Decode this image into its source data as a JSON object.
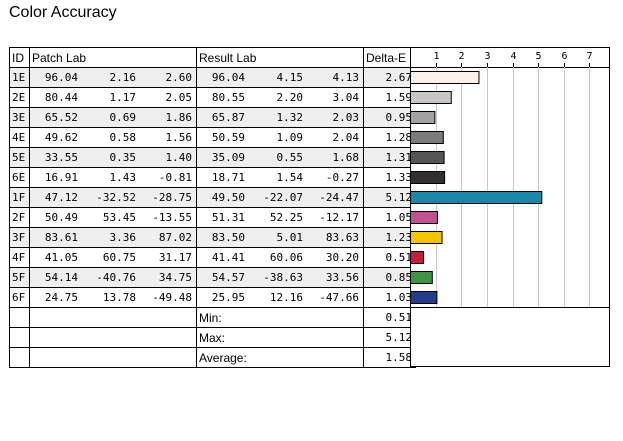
{
  "title": "Color Accuracy",
  "headers": {
    "id": "ID",
    "patch": "Patch Lab",
    "result": "Result Lab",
    "delta": "Delta-E"
  },
  "rows": [
    {
      "id": "1E",
      "patch": [
        "96.04",
        "2.16",
        "2.60"
      ],
      "result": [
        "96.04",
        "4.15",
        "4.13"
      ],
      "delta": "2.67",
      "color": "#fbf0ea"
    },
    {
      "id": "2E",
      "patch": [
        "80.44",
        "1.17",
        "2.05"
      ],
      "result": [
        "80.55",
        "2.20",
        "3.04"
      ],
      "delta": "1.59",
      "color": "#c8c6c5"
    },
    {
      "id": "3E",
      "patch": [
        "65.52",
        "0.69",
        "1.86"
      ],
      "result": [
        "65.87",
        "1.32",
        "2.03"
      ],
      "delta": "0.95",
      "color": "#a2a2a1"
    },
    {
      "id": "4E",
      "patch": [
        "49.62",
        "0.58",
        "1.56"
      ],
      "result": [
        "50.59",
        "1.09",
        "2.04"
      ],
      "delta": "1.28",
      "color": "#7b7b7b"
    },
    {
      "id": "5E",
      "patch": [
        "33.55",
        "0.35",
        "1.40"
      ],
      "result": [
        "35.09",
        "0.55",
        "1.68"
      ],
      "delta": "1.31",
      "color": "#555555"
    },
    {
      "id": "6E",
      "patch": [
        "16.91",
        "1.43",
        "-0.81"
      ],
      "result": [
        "18.71",
        "1.54",
        "-0.27"
      ],
      "delta": "1.33",
      "color": "#303030"
    },
    {
      "id": "1F",
      "patch": [
        "47.12",
        "-32.52",
        "-28.75"
      ],
      "result": [
        "49.50",
        "-22.07",
        "-24.47"
      ],
      "delta": "5.12",
      "color": "#1a88a8"
    },
    {
      "id": "2F",
      "patch": [
        "50.49",
        "53.45",
        "-13.55"
      ],
      "result": [
        "51.31",
        "52.25",
        "-12.17"
      ],
      "delta": "1.05",
      "color": "#c05294"
    },
    {
      "id": "3F",
      "patch": [
        "83.61",
        "3.36",
        "87.02"
      ],
      "result": [
        "83.50",
        "5.01",
        "83.63"
      ],
      "delta": "1.23",
      "color": "#f2c500"
    },
    {
      "id": "4F",
      "patch": [
        "41.05",
        "60.75",
        "31.17"
      ],
      "result": [
        "41.41",
        "60.06",
        "30.20"
      ],
      "delta": "0.51",
      "color": "#c22034"
    },
    {
      "id": "5F",
      "patch": [
        "54.14",
        "-40.76",
        "34.75"
      ],
      "result": [
        "54.57",
        "-38.63",
        "33.56"
      ],
      "delta": "0.85",
      "color": "#3e9447"
    },
    {
      "id": "6F",
      "patch": [
        "24.75",
        "13.78",
        "-49.48"
      ],
      "result": [
        "25.95",
        "12.16",
        "-47.66"
      ],
      "delta": "1.03",
      "color": "#233c8c"
    }
  ],
  "summary": [
    {
      "label": "Min:",
      "value": "0.51"
    },
    {
      "label": "Max:",
      "value": "5.12"
    },
    {
      "label": "Average:",
      "value": "1.58"
    }
  ],
  "chart_data": {
    "type": "bar",
    "orientation": "horizontal",
    "title": "Color Accuracy",
    "categories": [
      "1E",
      "2E",
      "3E",
      "4E",
      "5E",
      "6E",
      "1F",
      "2F",
      "3F",
      "4F",
      "5F",
      "6F"
    ],
    "values": [
      2.67,
      1.59,
      0.95,
      1.28,
      1.31,
      1.33,
      5.12,
      1.05,
      1.23,
      0.51,
      0.85,
      1.03
    ],
    "xticks": [
      "1",
      "2",
      "3",
      "4",
      "5",
      "6",
      "7"
    ],
    "xlim": [
      0,
      7.8
    ],
    "grid": true,
    "xlabel": "",
    "ylabel": ""
  }
}
